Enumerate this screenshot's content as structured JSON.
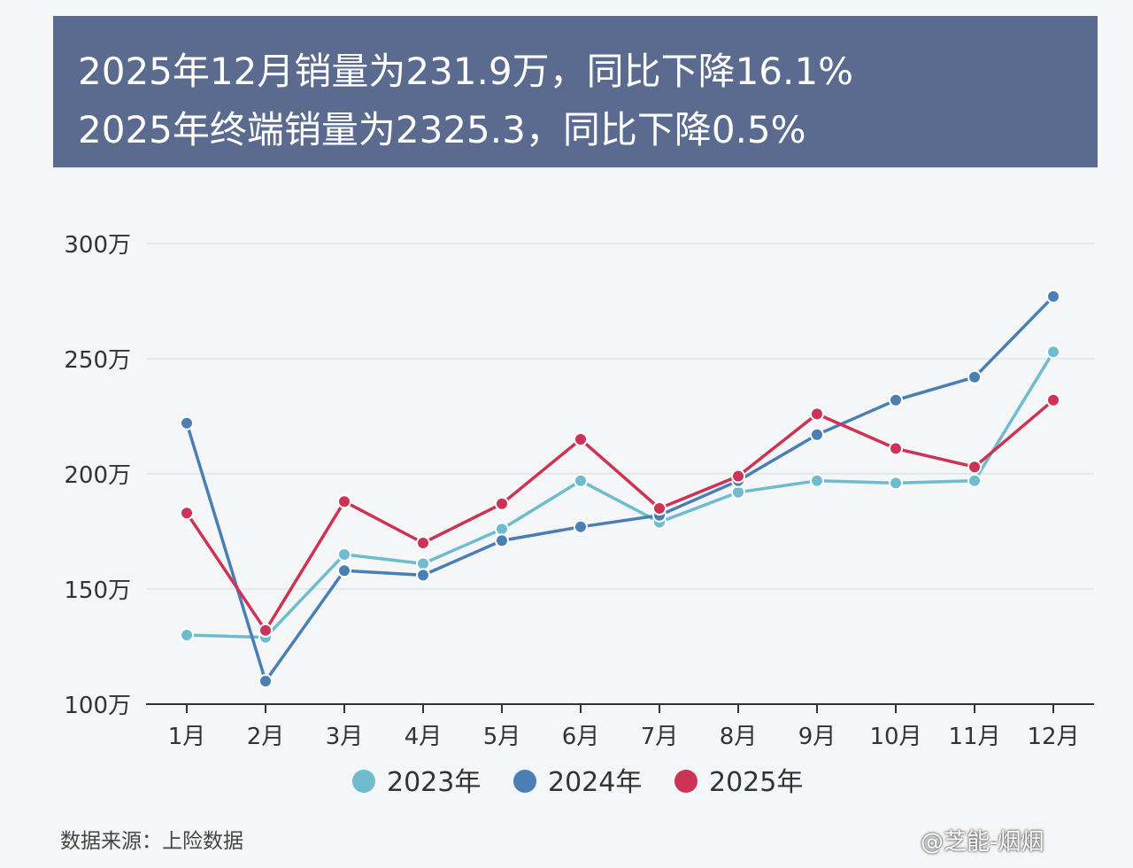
{
  "banner": {
    "line1": "2025年12月销量为231.9万，同比下降16.1%",
    "line2": "2025年终端销量为2325.3，同比下降0.5%"
  },
  "source": "数据来源：上险数据",
  "credit": "@芝能-烟烟",
  "chart_data": {
    "type": "line",
    "categories": [
      "1月",
      "2月",
      "3月",
      "4月",
      "5月",
      "6月",
      "7月",
      "8月",
      "9月",
      "10月",
      "11月",
      "12月"
    ],
    "y_ticks": [
      {
        "value": 100,
        "label": "100万"
      },
      {
        "value": 150,
        "label": "150万"
      },
      {
        "value": 200,
        "label": "200万"
      },
      {
        "value": 250,
        "label": "250万"
      },
      {
        "value": 300,
        "label": "300万"
      }
    ],
    "ylim": [
      100,
      300
    ],
    "grid": true,
    "legend_position": "bottom",
    "series": [
      {
        "name": "2023年",
        "color": "#6fbccf",
        "values": [
          130,
          129,
          165,
          161,
          176,
          197,
          179,
          192,
          197,
          196,
          197,
          253
        ]
      },
      {
        "name": "2024年",
        "color": "#4a7fb5",
        "values": [
          222,
          110,
          158,
          156,
          171,
          177,
          182,
          197,
          217,
          232,
          242,
          277
        ]
      },
      {
        "name": "2025年",
        "color": "#cc3355",
        "values": [
          183,
          132,
          188,
          170,
          187,
          215,
          185,
          199,
          226,
          211,
          203,
          232
        ]
      }
    ]
  }
}
